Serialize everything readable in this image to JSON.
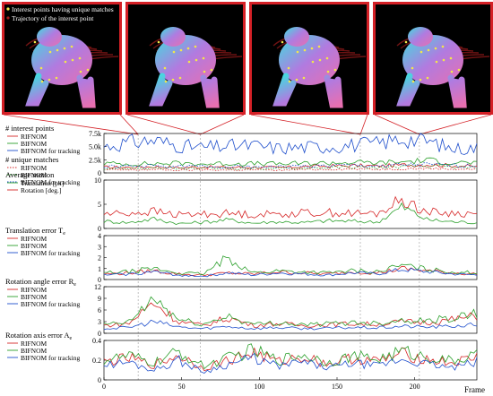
{
  "thumbnails": {
    "legend": [
      "Interest points having unique matches",
      "Trajectory of the interest point"
    ],
    "frames": [
      22,
      62,
      165,
      203
    ],
    "colors": {
      "frame": "#d42026",
      "background": "#000000",
      "trajectory": "#9e1b1b",
      "points": "#f2e84a"
    }
  },
  "chart_data": [
    {
      "type": "line",
      "title": "# interest points",
      "title2": "# unique matches",
      "legend": [
        "RIFNOM",
        "BIFNOM",
        "BIFNOM for tracking"
      ],
      "legend2": [
        "RIFNOM",
        "BIFNOM",
        "BIFNOM for tracking"
      ],
      "yticks": [
        "7.5k",
        "5.0k",
        "2.5k",
        "0"
      ],
      "ylim": [
        0,
        7500
      ],
      "series": [
        {
          "name": "RIFNOM",
          "color": "#d62728",
          "values": [
            1100,
            1050,
            1200,
            1000,
            1150,
            1050,
            1100,
            1000,
            1200,
            1300,
            1400,
            1300,
            1500,
            1600,
            1400,
            1200
          ]
        },
        {
          "name": "BIFNOM",
          "color": "#2ca02c",
          "values": [
            1800,
            1700,
            1750,
            1850,
            1700,
            1800,
            1750,
            1700,
            1800,
            1900,
            2000,
            1900,
            2100,
            2400,
            2000,
            1900
          ]
        },
        {
          "name": "BIFNOM for tracking",
          "color": "#1f4fcc",
          "values": [
            5000,
            5800,
            6200,
            5200,
            4800,
            5100,
            5200,
            4700,
            4900,
            5000,
            5300,
            5600,
            6500,
            6100,
            4600,
            4700
          ]
        },
        {
          "name": "RIFNOM",
          "color": "#d62728",
          "dashed": true,
          "values": [
            600,
            550,
            650,
            500,
            600,
            550,
            600,
            500,
            650,
            700,
            750,
            700,
            800,
            850,
            750,
            700
          ]
        },
        {
          "name": "BIFNOM",
          "color": "#2ca02c",
          "dashed": true,
          "values": [
            900,
            850,
            950,
            800,
            900,
            850,
            900,
            800,
            950,
            1000,
            1100,
            1000,
            1200,
            1300,
            1100,
            1000
          ]
        },
        {
          "name": "BIFNOM for tracking",
          "color": "#1f4fcc",
          "dashed": true,
          "values": [
            1200,
            1250,
            1300,
            1200,
            1250,
            1200,
            1250,
            1150,
            1300,
            1350,
            1400,
            1350,
            1500,
            1550,
            1400,
            1350
          ]
        }
      ]
    },
    {
      "type": "line",
      "title": "Average motion",
      "legend": [
        "Translation [px]",
        "Rotation [deg.]"
      ],
      "yticks": [
        "10",
        "5",
        "0"
      ],
      "ylim": [
        0,
        10
      ],
      "series": [
        {
          "name": "Translation [px]",
          "color": "#2ca02c",
          "values": [
            1.5,
            1.2,
            2.0,
            1.0,
            1.3,
            1.8,
            1.1,
            1.4,
            1.2,
            1.6,
            1.5,
            1.3,
            4.5,
            1.8,
            1.4,
            1.2
          ]
        },
        {
          "name": "Rotation [deg.]",
          "color": "#d62728",
          "values": [
            3.0,
            3.2,
            3.5,
            2.8,
            3.0,
            3.1,
            2.9,
            3.0,
            3.2,
            3.3,
            3.1,
            3.0,
            6.0,
            3.4,
            3.1,
            3.0
          ]
        }
      ]
    },
    {
      "type": "line",
      "title": "Translation error T",
      "title_sub": "e",
      "legend": [
        "RIFNOM",
        "BIFNOM",
        "BIFNOM for tracking"
      ],
      "yticks": [
        "4",
        "3",
        "2",
        "1",
        "0"
      ],
      "ylim": [
        0,
        4
      ],
      "series": [
        {
          "name": "RIFNOM",
          "color": "#d62728",
          "values": [
            0.5,
            0.6,
            0.8,
            0.5,
            0.4,
            0.6,
            0.5,
            0.7,
            0.6,
            0.5,
            0.7,
            0.6,
            1.0,
            0.8,
            0.6,
            0.5
          ]
        },
        {
          "name": "BIFNOM",
          "color": "#2ca02c",
          "values": [
            0.6,
            0.7,
            1.0,
            0.6,
            0.5,
            2.0,
            0.6,
            0.8,
            0.7,
            0.6,
            0.8,
            0.7,
            1.3,
            0.9,
            0.7,
            0.6
          ]
        },
        {
          "name": "BIFNOM for tracking",
          "color": "#1f4fcc",
          "values": [
            0.4,
            0.5,
            0.7,
            0.4,
            0.3,
            0.6,
            0.4,
            0.6,
            0.5,
            0.4,
            0.6,
            0.5,
            0.9,
            0.7,
            0.5,
            0.4
          ]
        }
      ]
    },
    {
      "type": "line",
      "title": "Rotation angle error R",
      "title_sub": "e",
      "legend": [
        "RIFNOM",
        "BIFNOM",
        "BIFNOM for tracking"
      ],
      "yticks": [
        "12",
        "9",
        "6",
        "3",
        "0"
      ],
      "ylim": [
        0,
        12
      ],
      "series": [
        {
          "name": "RIFNOM",
          "color": "#d62728",
          "values": [
            2.0,
            2.5,
            8.0,
            3.0,
            2.0,
            4.0,
            2.0,
            2.5,
            2.0,
            2.2,
            2.5,
            2.3,
            3.0,
            2.8,
            3.5,
            4.5
          ]
        },
        {
          "name": "BIFNOM",
          "color": "#2ca02c",
          "values": [
            2.2,
            2.8,
            9.0,
            3.5,
            2.2,
            4.5,
            2.2,
            2.8,
            2.2,
            2.4,
            2.8,
            2.6,
            3.5,
            3.2,
            4.0,
            5.0
          ]
        },
        {
          "name": "BIFNOM for tracking",
          "color": "#1f4fcc",
          "values": [
            1.2,
            1.5,
            3.0,
            1.6,
            1.2,
            1.8,
            1.2,
            1.5,
            1.2,
            1.3,
            1.5,
            1.4,
            1.8,
            1.6,
            1.8,
            2.2
          ]
        }
      ]
    },
    {
      "type": "line",
      "title": "Rotation axis error A",
      "title_sub": "e",
      "legend": [
        "RIFNOM",
        "BIFNOM",
        "BIFNOM for tracking"
      ],
      "yticks": [
        "0.4",
        "0.2",
        "0"
      ],
      "ylim": [
        0,
        0.4
      ],
      "xticks": [
        "0",
        "50",
        "100",
        "150",
        "200"
      ],
      "xlabel": "Frame",
      "xlim": [
        0,
        240
      ],
      "series": [
        {
          "name": "RIFNOM",
          "color": "#d62728",
          "values": [
            0.18,
            0.22,
            0.15,
            0.25,
            0.12,
            0.2,
            0.28,
            0.18,
            0.24,
            0.16,
            0.22,
            0.19,
            0.26,
            0.21,
            0.17,
            0.23
          ]
        },
        {
          "name": "BIFNOM",
          "color": "#2ca02c",
          "values": [
            0.2,
            0.24,
            0.17,
            0.28,
            0.14,
            0.22,
            0.3,
            0.2,
            0.26,
            0.18,
            0.24,
            0.21,
            0.29,
            0.23,
            0.19,
            0.25
          ]
        },
        {
          "name": "BIFNOM for tracking",
          "color": "#1f4fcc",
          "values": [
            0.15,
            0.18,
            0.1,
            0.2,
            0.08,
            0.16,
            0.22,
            0.14,
            0.18,
            0.12,
            0.17,
            0.14,
            0.21,
            0.16,
            0.12,
            0.18
          ]
        }
      ]
    }
  ]
}
